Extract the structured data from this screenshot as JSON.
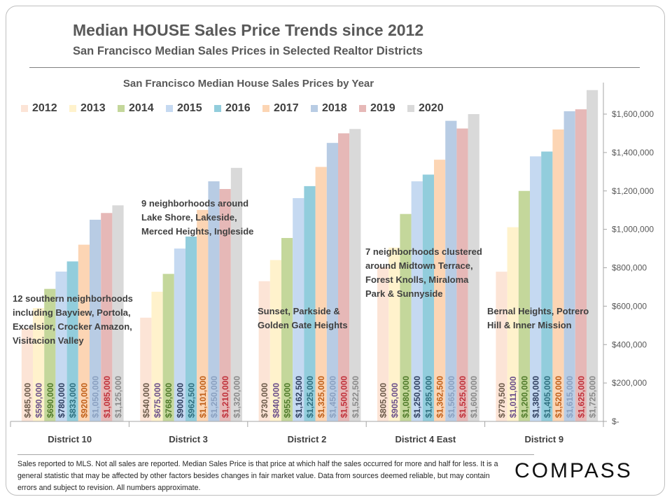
{
  "header": {
    "title": "Median HOUSE Sales Price Trends since 2012",
    "subtitle": "San Francisco Median Sales Prices in Selected Realtor Districts"
  },
  "chart_data": {
    "type": "bar",
    "title": "San Francisco Median House Sales Prices by Year",
    "categories": [
      "District 10",
      "District 3",
      "District 2",
      "District 4 East",
      "District 9"
    ],
    "ylim": [
      0,
      1800000
    ],
    "yticks": [
      0,
      200000,
      400000,
      600000,
      800000,
      1000000,
      1200000,
      1400000,
      1600000
    ],
    "ytick_labels": [
      "$-",
      "$200,000",
      "$400,000",
      "$600,000",
      "$800,000",
      "$1,000,000",
      "$1,200,000",
      "$1,400,000",
      "$1,600,000"
    ],
    "y_axis_side": "right",
    "grid": false,
    "legend_position": "top",
    "series": [
      {
        "name": "2012",
        "color": "#fce4d6",
        "label_color": "#6b5a4a",
        "values": [
          485000,
          540000,
          730000,
          805000,
          779500
        ],
        "labels": [
          "$485,000",
          "$540,000",
          "$730,000",
          "$805,000",
          "$779,500"
        ]
      },
      {
        "name": "2013",
        "color": "#fff2cc",
        "label_color": "#6a4f8a",
        "values": [
          590000,
          675000,
          840000,
          905000,
          1011000
        ],
        "labels": [
          "$590,000",
          "$675,000",
          "$840,000",
          "$905,000",
          "$1,011,000"
        ]
      },
      {
        "name": "2014",
        "color": "#c4d79b",
        "label_color": "#4f7a2a",
        "values": [
          690000,
          768000,
          955000,
          1080000,
          1200000
        ],
        "labels": [
          "$690,000",
          "$768,000",
          "$955,000",
          "$1,080,000",
          "$1,200,000"
        ]
      },
      {
        "name": "2015",
        "color": "#c5d9f1",
        "label_color": "#2f3f5f",
        "values": [
          780000,
          900000,
          1162500,
          1250000,
          1380000
        ],
        "labels": [
          "$780,000",
          "$900,000",
          "$1,162,500",
          "$1,250,000",
          "$1,380,000"
        ]
      },
      {
        "name": "2016",
        "color": "#92cddc",
        "label_color": "#2f6f7f",
        "values": [
          833000,
          962500,
          1225000,
          1285000,
          1405000
        ],
        "labels": [
          "$833,000",
          "$962,500",
          "$1,225,000",
          "$1,285,000",
          "$1,405,000"
        ]
      },
      {
        "name": "2017",
        "color": "#fcd5b4",
        "label_color": "#c0601a",
        "values": [
          920000,
          1101000,
          1325000,
          1362500,
          1520000
        ],
        "labels": [
          "$920,000",
          "$1,101,000",
          "$1,325,000",
          "$1,362,500",
          "$1,520,000"
        ]
      },
      {
        "name": "2018",
        "color": "#b8cce4",
        "label_color": "#8aa0c0",
        "values": [
          1050000,
          1250000,
          1450000,
          1565000,
          1615000
        ],
        "labels": [
          "$1,050,000",
          "$1,250,000",
          "$1,450,000",
          "$1,565,000",
          "$1,615,000"
        ]
      },
      {
        "name": "2019",
        "color": "#e6b8b7",
        "label_color": "#c0303a",
        "values": [
          1085000,
          1210000,
          1500000,
          1525000,
          1625000
        ],
        "labels": [
          "$1,085,000",
          "$1,210,000",
          "$1,500,000",
          "$1,525,000",
          "$1,625,000"
        ]
      },
      {
        "name": "2020",
        "color": "#d9d9d9",
        "label_color": "#8a8a8a",
        "values": [
          1125000,
          1320000,
          1522500,
          1600000,
          1725000
        ],
        "labels": [
          "$1,125,000",
          "$1,320,000",
          "$1,522,500",
          "$1,600,000",
          "$1,725,000"
        ]
      }
    ],
    "annotations": [
      [
        "12 southern neighborhoods",
        "including Bayview, Portola,",
        "Excelsior, Crocker Amazon,",
        "Visitacion Valley"
      ],
      [
        "9 neighborhoods around",
        "Lake Shore, Lakeside,",
        "Merced Heights, Ingleside"
      ],
      [
        "Sunset, Parkside &",
        "Golden Gate Heights"
      ],
      [
        "7 neighborhoods clustered",
        "around Midtown Terrace,",
        "Forest Knolls, Miraloma",
        "Park & Sunnyside"
      ],
      [
        "Bernal Heights, Potrero",
        "Hill & Inner Mission"
      ]
    ]
  },
  "footer": {
    "note": "Sales reported to MLS. Not all sales are reported. Median Sales Price is that price at which half the sales occurred for more and half for less. It is a general statistic that may be affected by other factors besides changes in fair market value. Data from sources deemed reliable, but may contain errors and subject to revision.  All numbers approximate.",
    "logo": "COMPASS"
  }
}
